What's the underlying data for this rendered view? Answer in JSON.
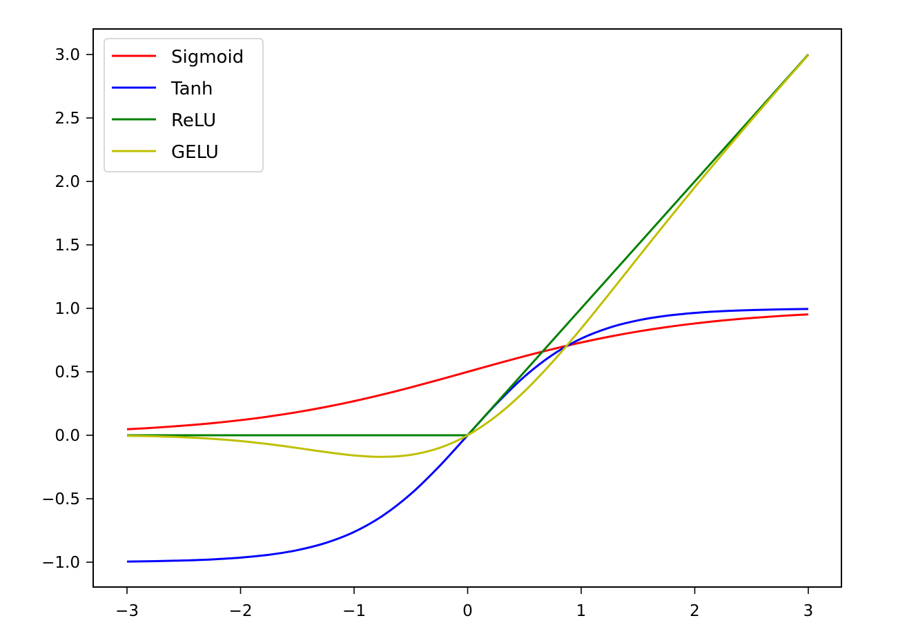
{
  "chart_data": {
    "type": "line",
    "title": "",
    "xlabel": "",
    "ylabel": "",
    "xlim": [
      -3.3,
      3.3
    ],
    "ylim": [
      -1.2,
      3.2
    ],
    "grid": false,
    "legend_position": "upper left",
    "x_ticks": [
      -3,
      -2,
      -1,
      0,
      1,
      2,
      3
    ],
    "x_tick_labels": [
      "−3",
      "−2",
      "−1",
      "0",
      "1",
      "2",
      "3"
    ],
    "y_ticks": [
      -1.0,
      -0.5,
      0.0,
      0.5,
      1.0,
      1.5,
      2.0,
      2.5,
      3.0
    ],
    "y_tick_labels": [
      "−1.0",
      "−0.5",
      "0.0",
      "0.5",
      "1.0",
      "1.5",
      "2.0",
      "2.5",
      "3.0"
    ],
    "x": [
      -3,
      -2.75,
      -2.5,
      -2.25,
      -2,
      -1.75,
      -1.5,
      -1.25,
      -1,
      -0.75,
      -0.5,
      -0.25,
      0,
      0.25,
      0.5,
      0.75,
      1,
      1.25,
      1.5,
      1.75,
      2,
      2.25,
      2.5,
      2.75,
      3
    ],
    "series": [
      {
        "name": "Sigmoid",
        "color": "#ff0000",
        "values": [
          0.0474,
          0.0601,
          0.0759,
          0.0953,
          0.1192,
          0.148,
          0.1824,
          0.2227,
          0.2689,
          0.3208,
          0.3775,
          0.4378,
          0.5,
          0.5622,
          0.6225,
          0.6792,
          0.7311,
          0.7773,
          0.8176,
          0.852,
          0.8808,
          0.9047,
          0.9241,
          0.9399,
          0.9526
        ]
      },
      {
        "name": "Tanh",
        "color": "#0000ff",
        "values": [
          -0.9951,
          -0.9918,
          -0.9866,
          -0.978,
          -0.964,
          -0.9414,
          -0.9051,
          -0.8483,
          -0.7616,
          -0.6351,
          -0.4621,
          -0.2449,
          0,
          0.2449,
          0.4621,
          0.6351,
          0.7616,
          0.8483,
          0.9051,
          0.9414,
          0.964,
          0.978,
          0.9866,
          0.9918,
          0.9951
        ]
      },
      {
        "name": "ReLU",
        "color": "#008000",
        "values": [
          0,
          0,
          0,
          0,
          0,
          0,
          0,
          0,
          0,
          0,
          0,
          0,
          0,
          0.25,
          0.5,
          0.75,
          1,
          1.25,
          1.5,
          1.75,
          2,
          2.25,
          2.5,
          2.75,
          3
        ]
      },
      {
        "name": "GELU",
        "color": "#bfbf00",
        "values": [
          -0.004,
          -0.0082,
          -0.0155,
          -0.0276,
          -0.0455,
          -0.0702,
          -0.1002,
          -0.132,
          -0.1587,
          -0.17,
          -0.1543,
          -0.1003,
          0,
          0.1497,
          0.3457,
          0.58,
          0.8413,
          1.118,
          1.3998,
          1.6798,
          1.9545,
          2.2224,
          2.4845,
          2.7418,
          2.996
        ]
      }
    ]
  },
  "legend": {
    "items": [
      {
        "label": "Sigmoid",
        "color": "#ff0000"
      },
      {
        "label": "Tanh",
        "color": "#0000ff"
      },
      {
        "label": "ReLU",
        "color": "#008000"
      },
      {
        "label": "GELU",
        "color": "#bfbf00"
      }
    ]
  }
}
